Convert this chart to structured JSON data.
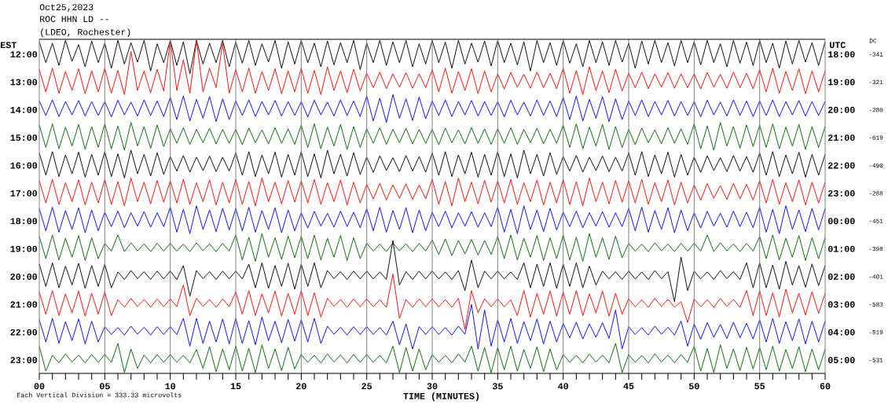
{
  "chart_data": {
    "type": "line",
    "title": "Oct25,2023",
    "subtitle": "ROC HHN LD --",
    "annotations": [
      "(LDEO, Rochester)",
      "Each Vertical Division = 333.33 microvolts",
      "UTC",
      "DC",
      "18:00",
      "19:00",
      "20:00",
      "21:00",
      "22:00",
      "23:00",
      "00:00",
      "01:00",
      "02:00",
      "03:00",
      "04:00",
      "05:00",
      "-341",
      "-321",
      "-280",
      "-619",
      "-490",
      "-288",
      "-451",
      "-398",
      "-401",
      "-583",
      "-519",
      "-531"
    ],
    "xlabel": "TIME (MINUTES)",
    "ylabel": "EST",
    "grid": "x",
    "line_style": "solid",
    "xlim": [
      0,
      60
    ],
    "xticks": [
      {
        "value": 0,
        "label": "00"
      },
      {
        "value": 1,
        "label": null
      },
      {
        "value": 2,
        "label": null
      },
      {
        "value": 3,
        "label": null
      },
      {
        "value": 4,
        "label": null
      },
      {
        "value": 5,
        "label": "05"
      },
      {
        "value": 6,
        "label": null
      },
      {
        "value": 7,
        "label": null
      },
      {
        "value": 8,
        "label": null
      },
      {
        "value": 9,
        "label": null
      },
      {
        "value": 10,
        "label": "10"
      },
      {
        "value": 11,
        "label": null
      },
      {
        "value": 12,
        "label": null
      },
      {
        "value": 13,
        "label": null
      },
      {
        "value": 14,
        "label": null
      },
      {
        "value": 15,
        "label": "15"
      },
      {
        "value": 16,
        "label": null
      },
      {
        "value": 17,
        "label": null
      },
      {
        "value": 18,
        "label": null
      },
      {
        "value": 19,
        "label": null
      },
      {
        "value": 20,
        "label": "20"
      },
      {
        "value": 21,
        "label": null
      },
      {
        "value": 22,
        "label": null
      },
      {
        "value": 23,
        "label": null
      },
      {
        "value": 24,
        "label": null
      },
      {
        "value": 25,
        "label": "25"
      },
      {
        "value": 26,
        "label": null
      },
      {
        "value": 27,
        "label": null
      },
      {
        "value": 28,
        "label": null
      },
      {
        "value": 29,
        "label": null
      },
      {
        "value": 30,
        "label": "30"
      },
      {
        "value": 31,
        "label": null
      },
      {
        "value": 32,
        "label": null
      },
      {
        "value": 33,
        "label": null
      },
      {
        "value": 34,
        "label": null
      },
      {
        "value": 35,
        "label": "35"
      },
      {
        "value": 36,
        "label": null
      },
      {
        "value": 37,
        "label": null
      },
      {
        "value": 38,
        "label": null
      },
      {
        "value": 39,
        "label": null
      },
      {
        "value": 40,
        "label": "40"
      },
      {
        "value": 41,
        "label": null
      },
      {
        "value": 42,
        "label": null
      },
      {
        "value": 43,
        "label": null
      },
      {
        "value": 44,
        "label": null
      },
      {
        "value": 45,
        "label": "45"
      },
      {
        "value": 46,
        "label": null
      },
      {
        "value": 47,
        "label": null
      },
      {
        "value": 48,
        "label": null
      },
      {
        "value": 49,
        "label": null
      },
      {
        "value": 50,
        "label": "50"
      },
      {
        "value": 51,
        "label": null
      },
      {
        "value": 52,
        "label": null
      },
      {
        "value": 53,
        "label": null
      },
      {
        "value": 54,
        "label": null
      },
      {
        "value": 55,
        "label": "55"
      },
      {
        "value": 56,
        "label": null
      },
      {
        "value": 57,
        "label": null
      },
      {
        "value": 58,
        "label": null
      },
      {
        "value": 59,
        "label": null
      },
      {
        "value": 60,
        "label": "60"
      }
    ],
    "ylim": [
      23.48,
      11.46
    ],
    "yticks": [
      {
        "value": 12,
        "label": "12:00"
      },
      {
        "value": 13,
        "label": "13:00"
      },
      {
        "value": 14,
        "label": "14:00"
      },
      {
        "value": 15,
        "label": "15:00"
      },
      {
        "value": 16,
        "label": "16:00"
      },
      {
        "value": 17,
        "label": "17:00"
      },
      {
        "value": 18,
        "label": "18:00"
      },
      {
        "value": 19,
        "label": "19:00"
      },
      {
        "value": 20,
        "label": "20:00"
      },
      {
        "value": 21,
        "label": "21:00"
      },
      {
        "value": 22,
        "label": "22:00"
      },
      {
        "value": 23,
        "label": "23:00"
      }
    ],
    "x": [
      0,
      0.5,
      1,
      1.5,
      2,
      2.5,
      3,
      3.5,
      4,
      4.5,
      5,
      5.5,
      6,
      6.5,
      7,
      7.5,
      8,
      8.5,
      9,
      9.5,
      10,
      10.5,
      11,
      11.5,
      12,
      12.5,
      13,
      13.5,
      14,
      14.5,
      15,
      15.5,
      16,
      16.5,
      17,
      17.5,
      18,
      18.5,
      19,
      19.5,
      20,
      20.5,
      21,
      21.5,
      22,
      22.5,
      23,
      23.5,
      24,
      24.5,
      25,
      25.5,
      26,
      26.5,
      27,
      27.5,
      28,
      28.5,
      29,
      29.5,
      30,
      30.5,
      31,
      31.5,
      32,
      32.5,
      33,
      33.5,
      34,
      34.5,
      35,
      35.5,
      36,
      36.5,
      37,
      37.5,
      38,
      38.5,
      39,
      39.5,
      40,
      40.5,
      41,
      41.5,
      42,
      42.5,
      43,
      43.5,
      44,
      44.5,
      45,
      45.5,
      46,
      46.5,
      47,
      47.5,
      48,
      48.5,
      49,
      49.5,
      50,
      50.5,
      51,
      51.5,
      52,
      52.5,
      53,
      53.5,
      54,
      54.5,
      55,
      55.5,
      56,
      56.5,
      57,
      57.5,
      58,
      58.5,
      59,
      59.5,
      60
    ],
    "series": [
      {
        "color": "#000000",
        "values": [
          11.55,
          12.3,
          11.6,
          12.4,
          11.5,
          12.25,
          11.65,
          12.45,
          11.52,
          12.3,
          11.6,
          12.5,
          11.5,
          12.35,
          11.58,
          12.28,
          11.5,
          12.6,
          11.62,
          12.3,
          11.5,
          12.4,
          11.55,
          12.7,
          11.5,
          12.35,
          11.6,
          12.3,
          11.5,
          12.45,
          11.56,
          12.32,
          11.5,
          12.4,
          11.62,
          12.28,
          11.5,
          12.5,
          11.55,
          12.35,
          11.5,
          12.3,
          11.6,
          12.45,
          11.52,
          12.38,
          11.58,
          12.3,
          11.5,
          12.55,
          11.6,
          12.3,
          11.5,
          12.4,
          11.55,
          12.3,
          11.5,
          12.45,
          11.62,
          12.35,
          11.5,
          12.3,
          11.56,
          12.5,
          11.5,
          12.35,
          11.6,
          12.28,
          11.52,
          12.42,
          11.5,
          12.3,
          11.6,
          12.38,
          11.55,
          12.6,
          11.5,
          12.3,
          11.58,
          12.4,
          11.5,
          12.32,
          11.62,
          12.45,
          11.5,
          12.3,
          11.55,
          12.4,
          11.5,
          12.28,
          11.6,
          12.5,
          11.52,
          12.35,
          11.5,
          12.3,
          11.58,
          12.42,
          11.5,
          12.3,
          11.55,
          12.38,
          11.5,
          12.3,
          11.62,
          12.45,
          11.5,
          12.32,
          11.56,
          12.4,
          11.5,
          12.3,
          11.6,
          12.5,
          11.52,
          12.35,
          11.5,
          12.28,
          11.58,
          12.4,
          11.55
        ]
      },
      {
        "color": "#ff0000",
        "values": [
          12.55,
          13.35,
          12.5,
          13.4,
          12.62,
          13.3,
          12.52,
          13.42,
          12.6,
          13.35,
          12.5,
          13.4,
          12.58,
          13.45,
          11.9,
          13.3,
          12.6,
          13.38,
          12.54,
          13.32,
          11.5,
          13.3,
          12.2,
          13.4,
          11.5,
          13.35,
          12.5,
          13.2,
          11.6,
          13.4,
          12.55,
          13.35,
          12.5,
          13.4,
          12.62,
          13.3,
          12.52,
          13.42,
          12.6,
          13.35,
          12.5,
          13.4,
          12.58,
          13.45,
          12.45,
          13.3,
          12.6,
          13.38,
          12.54,
          13.32,
          12.68,
          13.2,
          12.64,
          13.24,
          12.7,
          13.18,
          12.66,
          13.22,
          12.7,
          13.2,
          12.55,
          13.35,
          12.5,
          13.4,
          12.62,
          13.3,
          12.52,
          13.42,
          12.6,
          13.35,
          12.7,
          13.25,
          12.65,
          13.18,
          12.72,
          13.22,
          12.64,
          13.2,
          12.68,
          13.24,
          12.5,
          13.4,
          12.58,
          13.45,
          12.45,
          13.3,
          12.6,
          13.38,
          12.54,
          13.32,
          12.68,
          13.2,
          12.64,
          13.24,
          12.7,
          13.18,
          12.66,
          13.22,
          12.7,
          13.2,
          12.7,
          13.25,
          12.65,
          13.18,
          12.72,
          13.22,
          12.64,
          13.2,
          12.68,
          13.24,
          12.55,
          13.35,
          12.5,
          13.4,
          12.62,
          13.3,
          12.52,
          13.42,
          12.6,
          13.35,
          12.6
        ]
      },
      {
        "color": "#0000ff",
        "values": [
          13.68,
          14.2,
          13.64,
          14.24,
          13.7,
          14.18,
          13.66,
          14.22,
          13.7,
          14.2,
          13.7,
          14.25,
          13.65,
          14.18,
          13.72,
          14.22,
          13.64,
          14.2,
          13.68,
          14.24,
          13.55,
          14.35,
          13.5,
          14.4,
          13.62,
          14.3,
          13.52,
          14.42,
          13.6,
          14.35,
          13.68,
          14.2,
          13.64,
          14.24,
          13.7,
          14.18,
          13.66,
          14.22,
          13.7,
          14.2,
          13.7,
          14.25,
          13.65,
          14.18,
          13.72,
          14.22,
          13.64,
          14.2,
          13.68,
          14.24,
          13.5,
          14.4,
          13.58,
          14.45,
          13.45,
          14.3,
          13.6,
          14.38,
          13.54,
          14.32,
          13.68,
          14.2,
          13.64,
          14.24,
          13.7,
          14.18,
          13.66,
          14.22,
          13.7,
          14.2,
          13.7,
          14.25,
          13.65,
          14.18,
          13.72,
          14.22,
          13.64,
          14.2,
          13.68,
          14.24,
          13.55,
          14.35,
          13.5,
          14.4,
          13.62,
          14.3,
          13.52,
          14.42,
          13.6,
          14.35,
          13.68,
          14.2,
          13.64,
          14.24,
          13.7,
          14.18,
          13.66,
          14.22,
          13.7,
          14.2,
          13.7,
          14.25,
          13.65,
          14.18,
          13.72,
          14.22,
          13.64,
          14.2,
          13.68,
          14.24,
          13.68,
          14.2,
          13.64,
          14.24,
          13.7,
          14.18,
          13.66,
          14.22,
          13.7,
          14.2,
          13.7
        ]
      },
      {
        "color": "#006400",
        "values": [
          14.55,
          15.35,
          14.5,
          15.4,
          14.62,
          15.3,
          14.52,
          15.42,
          14.6,
          15.35,
          14.5,
          15.4,
          14.58,
          15.45,
          14.45,
          15.3,
          14.6,
          15.38,
          14.54,
          15.32,
          14.68,
          15.2,
          14.64,
          15.24,
          14.7,
          15.18,
          14.66,
          15.22,
          14.7,
          15.2,
          14.7,
          15.25,
          14.65,
          15.18,
          14.72,
          15.22,
          14.64,
          15.2,
          14.68,
          15.24,
          14.55,
          15.35,
          14.5,
          15.4,
          14.62,
          15.3,
          14.52,
          15.42,
          14.6,
          15.35,
          14.68,
          15.2,
          14.64,
          15.24,
          14.7,
          15.18,
          14.66,
          15.22,
          14.7,
          15.2,
          14.7,
          15.25,
          14.65,
          15.18,
          14.72,
          15.22,
          14.64,
          15.2,
          14.68,
          15.24,
          14.68,
          15.2,
          14.64,
          15.24,
          14.7,
          15.18,
          14.66,
          15.22,
          14.7,
          15.2,
          14.55,
          15.35,
          14.5,
          15.4,
          14.62,
          15.3,
          14.52,
          15.42,
          14.6,
          15.35,
          14.7,
          15.25,
          14.65,
          15.18,
          14.72,
          15.22,
          14.64,
          15.2,
          14.68,
          15.24,
          14.5,
          15.4,
          14.58,
          15.45,
          14.45,
          15.3,
          14.6,
          15.38,
          14.54,
          15.32,
          14.55,
          15.35,
          14.5,
          15.4,
          14.62,
          15.3,
          14.52,
          15.42,
          14.6,
          15.35,
          14.6
        ]
      },
      {
        "color": "#000000",
        "values": [
          15.55,
          16.35,
          15.5,
          16.4,
          15.62,
          16.3,
          15.52,
          16.42,
          15.6,
          16.35,
          15.5,
          16.4,
          15.58,
          16.45,
          15.45,
          16.3,
          15.6,
          16.38,
          15.54,
          16.32,
          15.68,
          16.2,
          15.64,
          16.24,
          15.7,
          16.18,
          15.66,
          16.22,
          15.7,
          16.2,
          15.55,
          16.35,
          15.5,
          16.4,
          15.62,
          16.3,
          15.52,
          16.42,
          15.6,
          16.35,
          15.5,
          16.4,
          15.58,
          16.45,
          15.45,
          16.3,
          15.6,
          16.38,
          15.54,
          16.32,
          15.7,
          16.25,
          15.65,
          16.18,
          15.72,
          16.22,
          15.64,
          16.2,
          15.68,
          16.24,
          15.55,
          16.35,
          15.5,
          16.4,
          15.62,
          16.3,
          15.52,
          16.42,
          15.6,
          16.35,
          15.5,
          16.4,
          15.58,
          16.45,
          15.45,
          16.3,
          15.6,
          16.38,
          15.54,
          16.32,
          15.68,
          16.2,
          15.64,
          16.24,
          15.7,
          16.18,
          15.66,
          16.22,
          15.7,
          16.2,
          15.55,
          16.35,
          15.5,
          16.4,
          15.62,
          16.3,
          15.52,
          16.42,
          15.6,
          16.35,
          15.7,
          16.25,
          15.65,
          16.18,
          15.72,
          16.22,
          15.64,
          16.2,
          15.68,
          16.24,
          15.55,
          16.35,
          15.5,
          16.4,
          15.62,
          16.3,
          15.52,
          16.42,
          15.6,
          16.35,
          15.6
        ]
      },
      {
        "color": "#ff0000",
        "values": [
          16.55,
          17.35,
          16.5,
          17.4,
          16.62,
          17.3,
          16.52,
          17.42,
          16.6,
          17.35,
          16.5,
          17.4,
          16.58,
          17.45,
          16.45,
          17.3,
          16.6,
          17.38,
          16.54,
          17.32,
          16.55,
          17.35,
          16.5,
          17.4,
          16.62,
          17.3,
          16.52,
          17.42,
          16.6,
          17.35,
          16.5,
          17.4,
          16.58,
          17.45,
          16.45,
          17.3,
          16.6,
          17.38,
          16.54,
          17.32,
          16.55,
          17.35,
          16.5,
          17.4,
          16.62,
          17.3,
          16.52,
          17.42,
          16.6,
          17.35,
          16.68,
          17.2,
          16.64,
          17.24,
          16.7,
          17.18,
          16.66,
          17.22,
          16.7,
          17.2,
          16.5,
          17.4,
          16.58,
          17.45,
          16.45,
          17.3,
          16.6,
          17.38,
          16.54,
          17.32,
          16.55,
          17.35,
          16.5,
          17.4,
          16.62,
          17.3,
          16.52,
          17.42,
          16.6,
          17.35,
          16.5,
          17.4,
          16.58,
          17.45,
          16.45,
          17.3,
          16.6,
          17.38,
          16.54,
          17.32,
          16.55,
          17.35,
          16.5,
          17.4,
          16.62,
          17.3,
          16.52,
          17.42,
          16.6,
          17.35,
          16.7,
          17.25,
          16.65,
          17.18,
          16.72,
          17.22,
          16.64,
          17.2,
          16.68,
          17.24,
          16.55,
          17.35,
          16.5,
          17.4,
          16.62,
          17.3,
          16.52,
          17.42,
          16.6,
          17.35,
          16.6
        ]
      },
      {
        "color": "#0000ff",
        "values": [
          17.55,
          18.35,
          17.5,
          18.4,
          17.62,
          18.3,
          17.52,
          18.42,
          17.6,
          18.35,
          17.68,
          18.2,
          17.64,
          18.24,
          17.7,
          18.18,
          17.66,
          18.22,
          17.7,
          18.2,
          17.5,
          18.4,
          17.58,
          18.45,
          17.45,
          18.3,
          17.6,
          18.38,
          17.54,
          18.32,
          17.55,
          18.35,
          17.5,
          18.4,
          17.62,
          18.3,
          17.52,
          18.42,
          17.6,
          18.35,
          17.7,
          18.25,
          17.65,
          18.18,
          17.72,
          18.22,
          17.64,
          18.2,
          17.68,
          18.24,
          17.55,
          18.35,
          17.5,
          18.4,
          17.62,
          18.3,
          17.52,
          18.42,
          17.6,
          18.35,
          17.68,
          18.2,
          17.64,
          18.24,
          17.7,
          18.18,
          17.66,
          18.22,
          17.7,
          18.2,
          17.5,
          18.4,
          17.58,
          18.45,
          17.45,
          18.3,
          17.6,
          18.38,
          17.54,
          18.32,
          17.68,
          18.2,
          17.64,
          18.24,
          17.7,
          18.18,
          17.66,
          18.22,
          17.7,
          18.2,
          17.55,
          18.35,
          17.5,
          18.4,
          17.62,
          18.3,
          17.52,
          18.42,
          17.6,
          18.35,
          17.7,
          18.25,
          17.65,
          18.18,
          17.72,
          18.22,
          17.64,
          18.2,
          17.68,
          18.24,
          17.5,
          18.4,
          17.58,
          18.45,
          17.45,
          18.3,
          17.6,
          18.38,
          17.54,
          18.32,
          17.55
        ]
      },
      {
        "color": "#006400",
        "values": [
          18.55,
          19.35,
          18.5,
          19.4,
          18.62,
          19.3,
          18.52,
          19.42,
          18.6,
          19.35,
          18.8,
          19.08,
          18.5,
          19.1,
          18.78,
          19.07,
          18.82,
          19.1,
          18.8,
          19.08,
          18.8,
          19.08,
          18.83,
          19.1,
          18.78,
          19.07,
          18.82,
          19.1,
          18.8,
          19.08,
          18.5,
          19.4,
          18.58,
          19.45,
          18.45,
          19.3,
          18.6,
          19.38,
          18.54,
          19.32,
          18.55,
          19.35,
          18.5,
          19.4,
          18.62,
          19.3,
          18.52,
          19.42,
          18.6,
          19.35,
          18.8,
          19.08,
          18.83,
          19.1,
          18.78,
          19.07,
          18.82,
          19.1,
          18.8,
          19.08,
          18.68,
          19.2,
          18.64,
          19.24,
          18.7,
          19.18,
          18.66,
          19.22,
          18.7,
          19.2,
          18.55,
          19.35,
          18.5,
          19.4,
          18.62,
          19.3,
          18.52,
          19.42,
          18.6,
          19.35,
          18.5,
          19.4,
          18.58,
          19.45,
          18.45,
          19.3,
          18.6,
          19.38,
          18.54,
          19.32,
          18.8,
          19.08,
          18.83,
          19.1,
          18.78,
          19.07,
          18.82,
          19.1,
          18.8,
          19.08,
          18.8,
          19.08,
          18.5,
          19.1,
          18.78,
          19.07,
          18.82,
          19.1,
          18.8,
          19.08,
          18.55,
          19.35,
          18.5,
          19.4,
          18.62,
          19.3,
          18.52,
          19.42,
          18.6,
          19.35,
          18.6
        ]
      },
      {
        "color": "#000000",
        "values": [
          19.55,
          20.35,
          19.5,
          20.4,
          19.62,
          20.3,
          19.52,
          20.42,
          19.6,
          20.35,
          19.55,
          20.4,
          19.83,
          20.1,
          19.78,
          20.07,
          19.82,
          20.1,
          19.8,
          20.08,
          19.8,
          20.1,
          19.6,
          20.7,
          19.78,
          20.07,
          19.82,
          20.1,
          19.8,
          20.08,
          19.8,
          20.08,
          19.55,
          20.4,
          19.5,
          20.42,
          19.6,
          20.35,
          19.52,
          20.45,
          19.55,
          20.35,
          19.5,
          20.4,
          19.78,
          20.07,
          19.82,
          20.1,
          19.8,
          20.08,
          19.8,
          20.08,
          19.83,
          20.1,
          18.7,
          20.3,
          19.82,
          20.1,
          19.8,
          20.08,
          19.8,
          20.08,
          19.83,
          20.1,
          19.78,
          20.5,
          19.4,
          20.4,
          19.8,
          20.08,
          19.8,
          20.08,
          19.83,
          20.1,
          19.5,
          20.4,
          19.55,
          20.35,
          19.5,
          20.42,
          19.55,
          20.35,
          19.5,
          20.4,
          19.62,
          20.3,
          19.8,
          20.08,
          19.82,
          20.1,
          19.8,
          20.08,
          19.83,
          20.1,
          19.78,
          20.07,
          19.82,
          20.9,
          19.3,
          20.5,
          19.8,
          20.08,
          19.83,
          20.1,
          19.78,
          20.07,
          19.82,
          20.1,
          19.5,
          20.4,
          19.5,
          20.4,
          19.58,
          20.45,
          19.45,
          20.3,
          19.6,
          20.38,
          19.54,
          20.32,
          19.6
        ]
      },
      {
        "color": "#ff0000",
        "values": [
          20.55,
          21.35,
          20.5,
          21.4,
          20.62,
          21.3,
          20.52,
          21.42,
          20.6,
          21.35,
          20.55,
          21.4,
          20.83,
          21.1,
          20.78,
          21.07,
          20.82,
          21.1,
          20.8,
          21.08,
          20.8,
          21.08,
          20.3,
          21.4,
          20.78,
          21.07,
          20.82,
          21.1,
          20.8,
          21.08,
          20.55,
          21.35,
          20.5,
          21.4,
          20.62,
          21.3,
          20.52,
          21.42,
          20.6,
          21.35,
          20.5,
          21.4,
          20.58,
          21.45,
          20.78,
          21.07,
          20.82,
          21.1,
          20.8,
          21.08,
          20.8,
          21.08,
          20.83,
          21.1,
          19.9,
          21.5,
          20.82,
          21.1,
          20.8,
          21.08,
          20.8,
          21.08,
          20.83,
          21.1,
          20.78,
          21.9,
          20.5,
          21.3,
          20.8,
          21.08,
          20.8,
          21.08,
          20.83,
          21.4,
          20.5,
          21.45,
          20.6,
          21.35,
          20.52,
          21.42,
          20.55,
          21.35,
          20.5,
          21.4,
          20.62,
          21.3,
          20.52,
          21.42,
          20.6,
          21.35,
          20.8,
          21.08,
          20.83,
          21.1,
          20.78,
          21.07,
          20.82,
          21.1,
          20.9,
          21.65,
          20.8,
          21.08,
          20.83,
          21.1,
          20.78,
          21.07,
          20.82,
          21.1,
          20.5,
          21.4,
          20.5,
          21.4,
          20.58,
          21.45,
          20.45,
          21.3,
          20.6,
          21.38,
          20.54,
          21.32,
          20.6
        ]
      },
      {
        "color": "#0000ff",
        "values": [
          21.55,
          22.35,
          21.5,
          22.4,
          21.62,
          22.3,
          21.52,
          22.42,
          21.6,
          22.35,
          21.8,
          22.08,
          21.83,
          22.1,
          21.78,
          22.07,
          21.82,
          22.1,
          21.8,
          22.08,
          21.8,
          22.08,
          21.5,
          22.5,
          21.5,
          22.4,
          21.6,
          22.35,
          21.52,
          22.42,
          21.5,
          22.4,
          21.58,
          22.45,
          21.45,
          22.3,
          21.6,
          22.38,
          21.54,
          22.32,
          21.55,
          22.35,
          21.5,
          22.4,
          21.78,
          22.07,
          21.82,
          22.1,
          21.8,
          22.08,
          21.8,
          22.08,
          21.83,
          22.1,
          21.6,
          22.45,
          21.7,
          22.6,
          21.8,
          22.08,
          21.8,
          22.08,
          21.83,
          22.1,
          21.78,
          22.07,
          21.0,
          22.6,
          21.2,
          22.5,
          21.55,
          22.35,
          21.5,
          22.4,
          21.62,
          22.3,
          21.52,
          22.42,
          21.6,
          22.35,
          21.68,
          22.2,
          21.64,
          22.24,
          21.7,
          22.18,
          21.66,
          22.22,
          21.2,
          22.6,
          21.8,
          22.08,
          21.83,
          22.1,
          21.78,
          22.07,
          21.82,
          22.1,
          21.6,
          22.5,
          21.7,
          22.25,
          21.65,
          22.18,
          21.72,
          22.22,
          21.64,
          22.2,
          21.68,
          22.24,
          21.55,
          22.35,
          21.5,
          22.4,
          21.62,
          22.3,
          21.52,
          22.42,
          21.6,
          22.35,
          21.6
        ]
      },
      {
        "color": "#006400",
        "values": [
          22.5,
          23.4,
          22.83,
          23.1,
          22.78,
          23.07,
          22.82,
          23.1,
          22.8,
          23.08,
          22.8,
          23.08,
          22.4,
          23.45,
          22.6,
          23.3,
          22.82,
          23.1,
          22.8,
          23.08,
          22.8,
          23.08,
          22.83,
          23.1,
          22.62,
          23.3,
          22.52,
          23.42,
          22.6,
          23.35,
          22.5,
          23.4,
          22.58,
          23.45,
          22.45,
          23.3,
          22.6,
          23.38,
          22.54,
          23.32,
          22.8,
          23.08,
          22.83,
          23.1,
          22.78,
          23.07,
          22.82,
          23.1,
          22.8,
          23.08,
          22.8,
          23.08,
          22.83,
          23.1,
          22.5,
          23.45,
          22.55,
          23.4,
          22.6,
          23.35,
          22.8,
          23.08,
          22.83,
          23.1,
          22.78,
          23.07,
          22.5,
          23.4,
          22.55,
          23.45,
          22.55,
          23.35,
          22.5,
          23.4,
          22.62,
          23.3,
          22.52,
          23.42,
          22.6,
          23.35,
          22.8,
          23.08,
          22.83,
          23.1,
          22.78,
          23.07,
          22.82,
          23.1,
          22.4,
          23.45,
          22.8,
          23.08,
          22.83,
          23.1,
          22.78,
          23.07,
          22.82,
          23.1,
          22.8,
          23.08,
          22.5,
          23.4,
          22.58,
          23.45,
          22.45,
          23.3,
          22.6,
          23.38,
          22.54,
          23.32,
          22.55,
          23.35,
          22.5,
          23.4,
          22.62,
          23.3,
          22.52,
          23.42,
          22.6,
          23.35,
          22.6
        ]
      }
    ]
  }
}
